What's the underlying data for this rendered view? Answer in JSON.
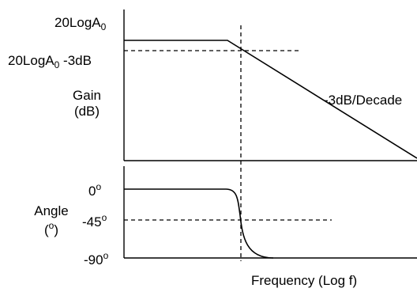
{
  "gain": {
    "ref_label": {
      "base": "20LogA",
      "sub": "0"
    },
    "minus3_label": {
      "base": "20LogA",
      "sub": "0",
      "suffix": " -3dB"
    },
    "axis_label_line1": "Gain",
    "axis_label_line2": "(dB)",
    "slope_label": "-3dB/Decade"
  },
  "phase": {
    "tick_0": {
      "value": "0",
      "unit": "o"
    },
    "tick_45": {
      "value": "-45",
      "unit": "o"
    },
    "tick_90": {
      "value": "-90",
      "unit": "o"
    },
    "axis_label_line1": "Angle",
    "axis_label_line2": {
      "open": "(",
      "unit": "o",
      "close": ")"
    }
  },
  "x_axis_label": "Frequency (Log f)",
  "colors": {
    "stroke": "#000000",
    "background": "#ffffff"
  }
}
